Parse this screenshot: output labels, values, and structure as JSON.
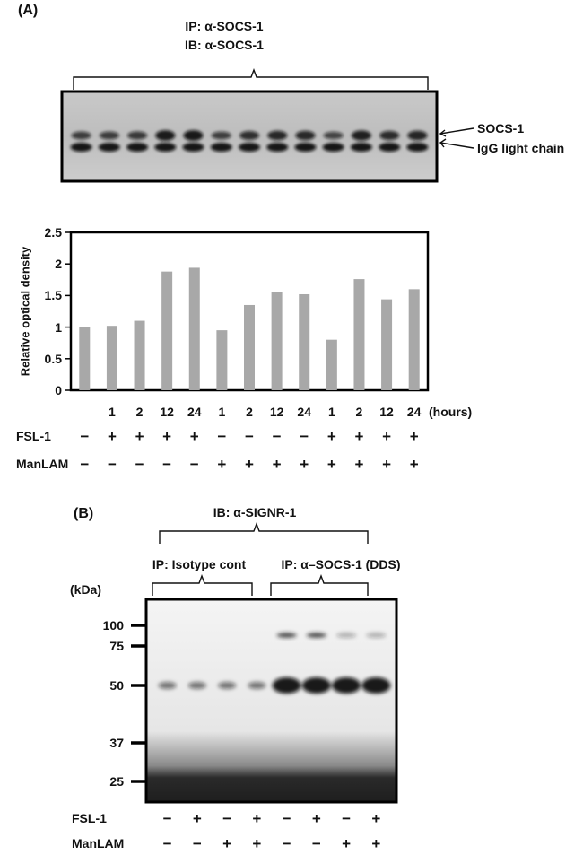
{
  "panelA": {
    "label": "(A)",
    "ip": "IP: α-SOCS-1",
    "ib": "IB: α-SOCS-1",
    "blot_labels": [
      "SOCS-1",
      "IgG light chain"
    ],
    "hours_unit": "(hours)",
    "row_labels": [
      "FSL-1",
      "ManLAM"
    ],
    "lanes": [
      {
        "hours": "",
        "fsl": "−",
        "manlam": "−"
      },
      {
        "hours": "1",
        "fsl": "+",
        "manlam": "−"
      },
      {
        "hours": "2",
        "fsl": "+",
        "manlam": "−"
      },
      {
        "hours": "12",
        "fsl": "+",
        "manlam": "−"
      },
      {
        "hours": "24",
        "fsl": "+",
        "manlam": "−"
      },
      {
        "hours": "1",
        "fsl": "−",
        "manlam": "+"
      },
      {
        "hours": "2",
        "fsl": "−",
        "manlam": "+"
      },
      {
        "hours": "12",
        "fsl": "−",
        "manlam": "+"
      },
      {
        "hours": "24",
        "fsl": "−",
        "manlam": "+"
      },
      {
        "hours": "1",
        "fsl": "+",
        "manlam": "+"
      },
      {
        "hours": "2",
        "fsl": "+",
        "manlam": "+"
      },
      {
        "hours": "12",
        "fsl": "+",
        "manlam": "+"
      },
      {
        "hours": "24",
        "fsl": "+",
        "manlam": "+"
      }
    ]
  },
  "chart_data": {
    "type": "bar",
    "title": "",
    "xlabel": "",
    "ylabel": "Relative optical density",
    "ylim": [
      0,
      2.5
    ],
    "yticks": [
      "0",
      "0.5",
      "1",
      "1.5",
      "2",
      "2.5"
    ],
    "values": [
      1.0,
      1.02,
      1.1,
      1.88,
      1.94,
      0.95,
      1.35,
      1.55,
      1.52,
      0.8,
      1.76,
      1.44,
      1.6
    ],
    "bar_color": "#a8a8a8",
    "grid": false
  },
  "panelB": {
    "label": "(B)",
    "ib": "IB:  α-SIGNR-1",
    "ip_left": "IP: Isotype cont",
    "ip_right": "IP: α–SOCS-1 (DDS)",
    "kda": "(kDa)",
    "markers": [
      "100",
      "75",
      "50",
      "37",
      "25"
    ],
    "row_labels": [
      "FSL-1",
      "ManLAM"
    ],
    "lanes": [
      {
        "fsl": "−",
        "manlam": "−"
      },
      {
        "fsl": "+",
        "manlam": "−"
      },
      {
        "fsl": "−",
        "manlam": "+"
      },
      {
        "fsl": "+",
        "manlam": "+"
      },
      {
        "fsl": "−",
        "manlam": "−"
      },
      {
        "fsl": "+",
        "manlam": "−"
      },
      {
        "fsl": "−",
        "manlam": "+"
      },
      {
        "fsl": "+",
        "manlam": "+"
      }
    ]
  }
}
